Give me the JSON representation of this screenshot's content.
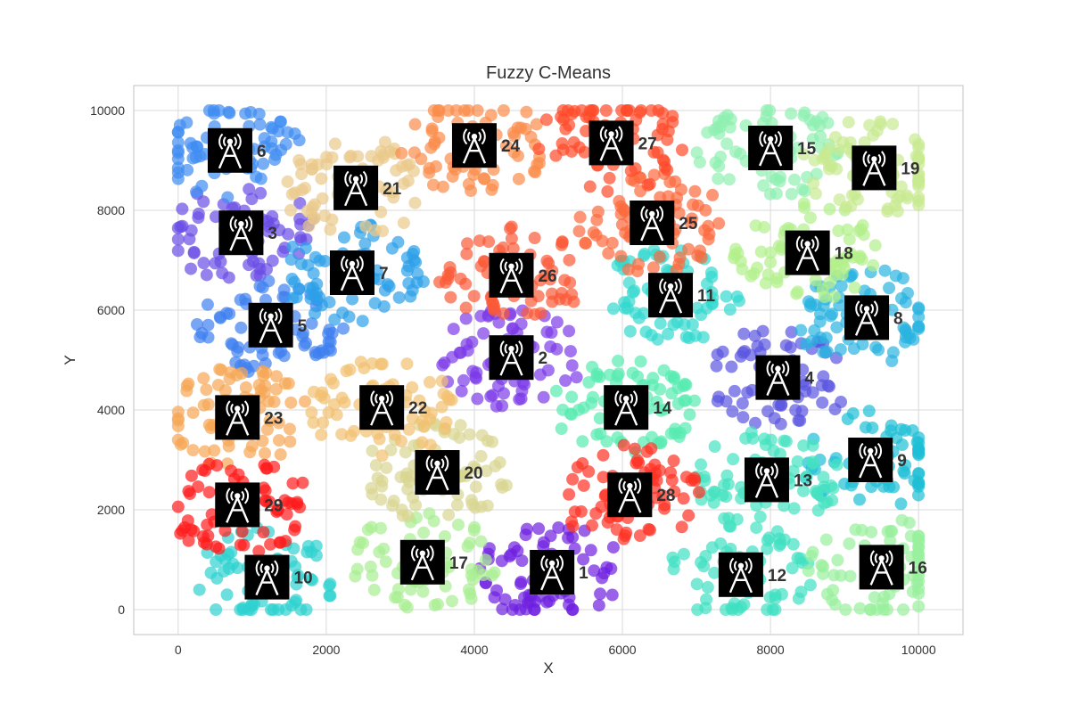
{
  "chart_data": {
    "type": "scatter",
    "title": "Fuzzy C-Means",
    "xlabel": "X",
    "ylabel": "Y",
    "xlim": [
      -600,
      10600
    ],
    "ylim": [
      -500,
      10500
    ],
    "xticks": [
      0,
      2000,
      4000,
      6000,
      8000,
      10000
    ],
    "yticks": [
      0,
      2000,
      4000,
      6000,
      8000,
      10000
    ],
    "grid": true,
    "marker_icon": "radio-tower-icon",
    "points_per_cluster": 70,
    "towers": [
      {
        "label": "1",
        "x": 5050,
        "y": 750,
        "color": "#6e1fe0"
      },
      {
        "label": "2",
        "x": 4500,
        "y": 5050,
        "color": "#7c3be8"
      },
      {
        "label": "3",
        "x": 850,
        "y": 7550,
        "color": "#6a4de6"
      },
      {
        "label": "4",
        "x": 8100,
        "y": 4650,
        "color": "#5a55e0"
      },
      {
        "label": "5",
        "x": 1250,
        "y": 5700,
        "color": "#3e80f0"
      },
      {
        "label": "6",
        "x": 700,
        "y": 9200,
        "color": "#3f8bf2"
      },
      {
        "label": "7",
        "x": 2350,
        "y": 6750,
        "color": "#2c9fe8"
      },
      {
        "label": "8",
        "x": 9300,
        "y": 5850,
        "color": "#2ab3e0"
      },
      {
        "label": "9",
        "x": 9350,
        "y": 3000,
        "color": "#1ebfd6"
      },
      {
        "label": "10",
        "x": 1200,
        "y": 650,
        "color": "#2dd2d0"
      },
      {
        "label": "11",
        "x": 6650,
        "y": 6300,
        "color": "#33d9cf"
      },
      {
        "label": "12",
        "x": 7600,
        "y": 700,
        "color": "#3ee0c2"
      },
      {
        "label": "13",
        "x": 7950,
        "y": 2600,
        "color": "#44e3c0"
      },
      {
        "label": "14",
        "x": 6050,
        "y": 4050,
        "color": "#57ebb0"
      },
      {
        "label": "15",
        "x": 8000,
        "y": 9250,
        "color": "#8ef0b0"
      },
      {
        "label": "16",
        "x": 9500,
        "y": 850,
        "color": "#98f09c"
      },
      {
        "label": "17",
        "x": 3300,
        "y": 950,
        "color": "#a8ee92"
      },
      {
        "label": "18",
        "x": 8500,
        "y": 7150,
        "color": "#b2f08a"
      },
      {
        "label": "19",
        "x": 9400,
        "y": 8850,
        "color": "#c8ea90"
      },
      {
        "label": "20",
        "x": 3500,
        "y": 2750,
        "color": "#d9d591"
      },
      {
        "label": "21",
        "x": 2400,
        "y": 8450,
        "color": "#e9c98a"
      },
      {
        "label": "22",
        "x": 2750,
        "y": 4050,
        "color": "#f2c070"
      },
      {
        "label": "23",
        "x": 800,
        "y": 3850,
        "color": "#f7a656"
      },
      {
        "label": "24",
        "x": 4000,
        "y": 9300,
        "color": "#fb8c4a"
      },
      {
        "label": "25",
        "x": 6400,
        "y": 7750,
        "color": "#fc6a3d"
      },
      {
        "label": "26",
        "x": 4500,
        "y": 6700,
        "color": "#fb5a38"
      },
      {
        "label": "27",
        "x": 5850,
        "y": 9350,
        "color": "#ff4a2a"
      },
      {
        "label": "28",
        "x": 6100,
        "y": 2300,
        "color": "#ff3122"
      },
      {
        "label": "29",
        "x": 800,
        "y": 2100,
        "color": "#ff1b1b"
      }
    ]
  }
}
